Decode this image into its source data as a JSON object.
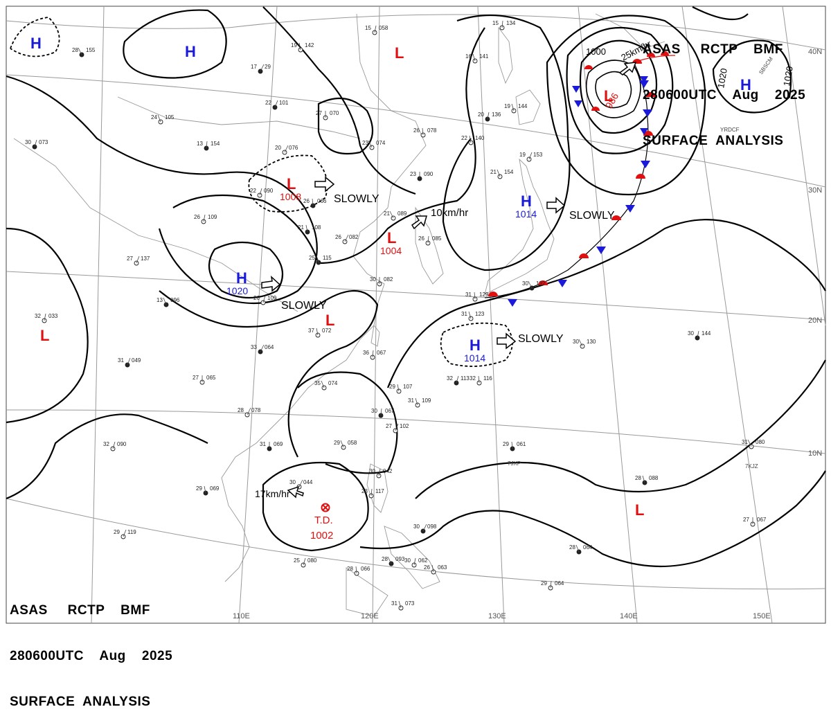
{
  "header": {
    "line1": "ASAS     RCTP    BMF",
    "line2": "280600UTC    Aug    2025",
    "line3": "SURFACE  ANALYSIS"
  },
  "colors": {
    "high": "#1a1ad8",
    "low": "#e01010",
    "grid": "#999999",
    "isobar": "#000000"
  },
  "lon_labels": [
    "110E",
    "120E",
    "130E",
    "140E",
    "150E"
  ],
  "lat_labels": [
    "40N",
    "30N",
    "20N",
    "10N"
  ],
  "pressure_centers": [
    {
      "type": "H",
      "value": ""
    },
    {
      "type": "H",
      "value": ""
    },
    {
      "type": "L",
      "value": ""
    },
    {
      "type": "L",
      "value": "1008"
    },
    {
      "type": "H",
      "value": "1020"
    },
    {
      "type": "L",
      "value": "1004"
    },
    {
      "type": "L",
      "value": ""
    },
    {
      "type": "H",
      "value": "1014"
    },
    {
      "type": "L",
      "value": "986"
    },
    {
      "type": "H",
      "value": ""
    },
    {
      "type": "H",
      "value": "1014"
    },
    {
      "type": "L",
      "value": ""
    },
    {
      "type": "L",
      "value": ""
    }
  ],
  "tropical_depression": {
    "label": "T.D.",
    "value": "1002",
    "motion": "17km/hr"
  },
  "motions": [
    "SLOWLY",
    "10km/hr",
    "SLOWLY",
    "SLOWLY",
    "SLOWLY",
    "25km/hr"
  ],
  "isobar_labels": [
    "1000",
    "1020",
    "1020"
  ],
  "ship_ids": [
    "SBSCM",
    "YRDCF",
    "7JXP",
    "7KJZ"
  ],
  "stations": [
    {
      "t": "28",
      "p": "155"
    },
    {
      "t": "15",
      "p": "058"
    },
    {
      "t": "19",
      "p": "142"
    },
    {
      "t": "17",
      "p": "29"
    },
    {
      "t": "15",
      "p": "134"
    },
    {
      "t": "16",
      "p": "141"
    },
    {
      "t": "22",
      "p": "101"
    },
    {
      "t": "27",
      "p": "070"
    },
    {
      "t": "24",
      "p": "105"
    },
    {
      "t": "30",
      "p": "073"
    },
    {
      "t": "26",
      "p": "078"
    },
    {
      "t": "23",
      "p": "074"
    },
    {
      "t": "20",
      "p": "136"
    },
    {
      "t": "22",
      "p": "140"
    },
    {
      "t": "20",
      "p": "076"
    },
    {
      "t": "13",
      "p": "154"
    },
    {
      "t": "19",
      "p": "144"
    },
    {
      "t": "19",
      "p": "153"
    },
    {
      "t": "23",
      "p": "090"
    },
    {
      "t": "21",
      "p": "154"
    },
    {
      "t": "22",
      "p": "090"
    },
    {
      "t": "26",
      "p": "066"
    },
    {
      "t": "21",
      "p": "089"
    },
    {
      "t": "26",
      "p": "109"
    },
    {
      "t": "21",
      "p": "108"
    },
    {
      "t": "26",
      "p": "082"
    },
    {
      "t": "26",
      "p": "085"
    },
    {
      "t": "25",
      "p": "115"
    },
    {
      "t": "27",
      "p": "137"
    },
    {
      "t": "30",
      "p": "082"
    },
    {
      "t": "13",
      "p": "096"
    },
    {
      "t": "26",
      "p": "109"
    },
    {
      "t": "31",
      "p": "129"
    },
    {
      "t": "30",
      "p": "132"
    },
    {
      "t": "32",
      "p": "033"
    },
    {
      "t": "37",
      "p": "072"
    },
    {
      "t": "33",
      "p": "064"
    },
    {
      "t": "36",
      "p": "067"
    },
    {
      "t": "31",
      "p": "123"
    },
    {
      "t": "31",
      "p": "049"
    },
    {
      "t": "27",
      "p": "065"
    },
    {
      "t": "35",
      "p": "074"
    },
    {
      "t": "32",
      "p": "113"
    },
    {
      "t": "32",
      "p": "116"
    },
    {
      "t": "30",
      "p": "130"
    },
    {
      "t": "30",
      "p": "144"
    },
    {
      "t": "29",
      "p": "107"
    },
    {
      "t": "28",
      "p": "078"
    },
    {
      "t": "30",
      "p": "067"
    },
    {
      "t": "31",
      "p": "109"
    },
    {
      "t": "27",
      "p": "102"
    },
    {
      "t": "31",
      "p": "069"
    },
    {
      "t": "29",
      "p": "058"
    },
    {
      "t": "32",
      "p": "090"
    },
    {
      "t": "29",
      "p": "061"
    },
    {
      "t": "31",
      "p": "080"
    },
    {
      "t": "30",
      "p": "042"
    },
    {
      "t": "29",
      "p": "069"
    },
    {
      "t": "30",
      "p": "044"
    },
    {
      "t": "23",
      "p": "117"
    },
    {
      "t": "28",
      "p": "088"
    },
    {
      "t": "29",
      "p": "119"
    },
    {
      "t": "27",
      "p": "067"
    },
    {
      "t": "28",
      "p": "064"
    },
    {
      "t": "25",
      "p": "080"
    },
    {
      "t": "28",
      "p": "066"
    },
    {
      "t": "28",
      "p": "093"
    },
    {
      "t": "30",
      "p": "062"
    },
    {
      "t": "26",
      "p": "063"
    },
    {
      "t": "30",
      "p": "098"
    },
    {
      "t": "29",
      "p": "064"
    },
    {
      "t": "31",
      "p": "073"
    }
  ]
}
